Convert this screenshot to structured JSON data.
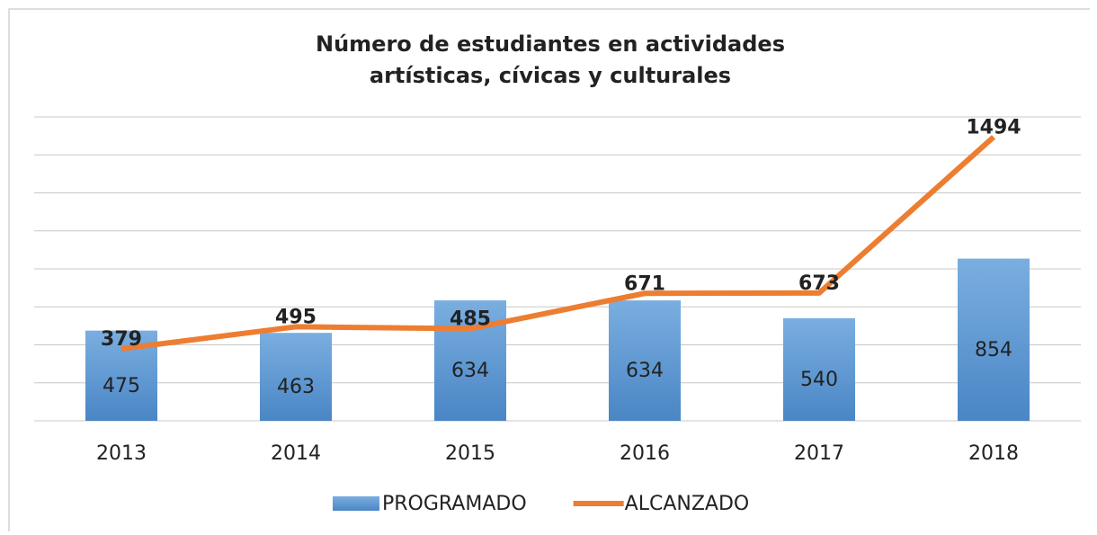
{
  "chart_data": {
    "type": "bar-line",
    "title": [
      "Número de estudiantes en actividades",
      "artísticas, cívicas y culturales"
    ],
    "categories": [
      "2013",
      "2014",
      "2015",
      "2016",
      "2017",
      "2018"
    ],
    "series": [
      {
        "name": "PROGRAMADO",
        "type": "bar",
        "color": "#5b9bd5",
        "values": [
          475,
          463,
          634,
          634,
          540,
          854
        ]
      },
      {
        "name": "ALCANZADO",
        "type": "line",
        "color": "#ed7d31",
        "values": [
          379,
          495,
          485,
          671,
          673,
          1494
        ]
      }
    ],
    "ylim": [
      0,
      1600
    ],
    "yticks": [
      0,
      200,
      400,
      600,
      800,
      1000,
      1200,
      1400,
      1600
    ],
    "grid": true,
    "legend": "bottom"
  }
}
